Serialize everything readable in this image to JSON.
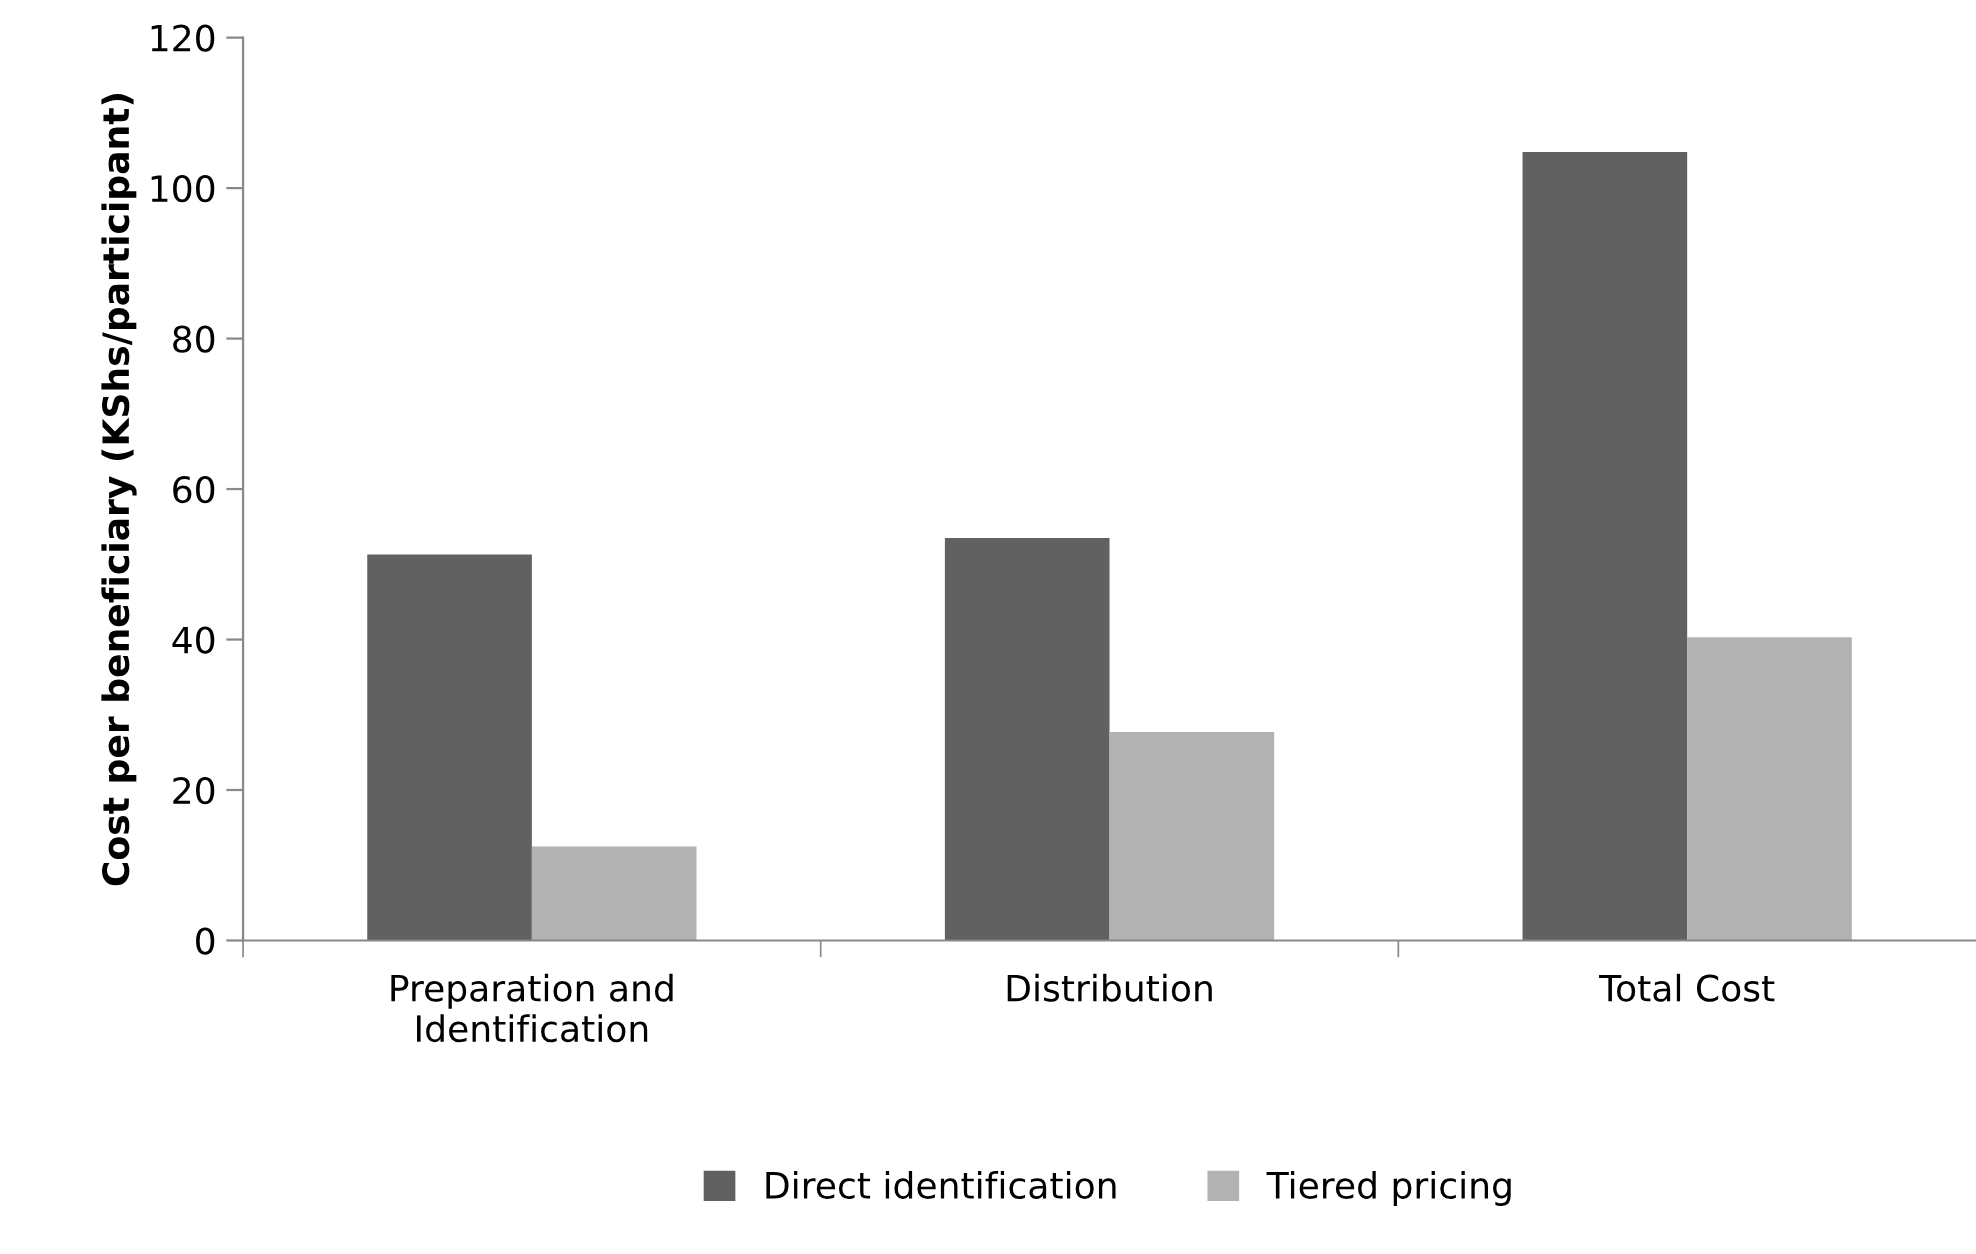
{
  "chart_data": {
    "type": "bar",
    "ylabel": "Cost per beneficiary (KShs/participant)",
    "categories": [
      "Preparation and\nIdentification",
      "Distribution",
      "Total Cost"
    ],
    "series": [
      {
        "name": "Direct identification",
        "color": "#616161",
        "values": [
          51.3,
          53.5,
          104.8
        ]
      },
      {
        "name": "Tiered pricing",
        "color": "#b2b2b2",
        "values": [
          12.5,
          27.7,
          40.3
        ]
      }
    ],
    "ylim": [
      0,
      120
    ],
    "yticks": [
      0,
      20,
      40,
      60,
      80,
      100,
      120
    ],
    "grid": false,
    "legend": "bottom"
  }
}
